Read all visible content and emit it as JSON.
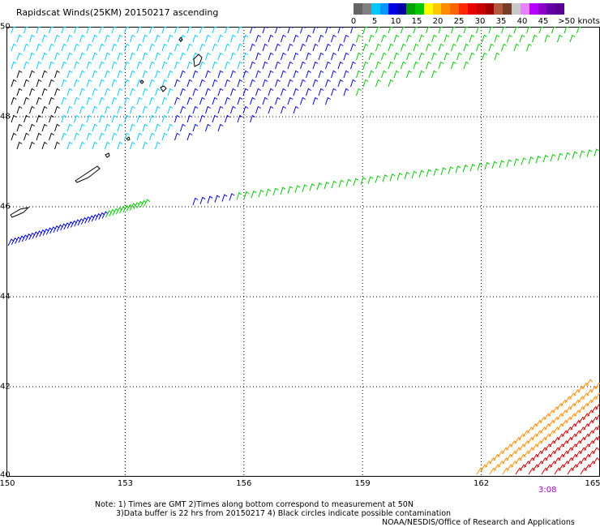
{
  "title": "Rapidscat Winds(25KM) 20150217 ascending",
  "legend": {
    "colors": [
      "#646464",
      "#808080",
      "#00c8ff",
      "#0096ff",
      "#0000e6",
      "#0000aa",
      "#00a000",
      "#00c800",
      "#ffff00",
      "#ffc800",
      "#ff8c00",
      "#ff6400",
      "#ff2800",
      "#e60000",
      "#c80000",
      "#a00000",
      "#b45a3c",
      "#783c28",
      "#c8c8c8",
      "#e682ff",
      "#b400ff",
      "#8c00c8",
      "#6400a0",
      "#5a0090"
    ],
    "labels": [
      "0",
      "5",
      "10",
      "15",
      "20",
      "25",
      "30",
      "35",
      "40",
      "45",
      ">50 knots"
    ]
  },
  "axes": {
    "longitude_labels": [
      "150",
      "153",
      "156",
      "159",
      "162",
      "165"
    ],
    "latitude_labels": [
      "50",
      "48",
      "46",
      "44",
      "42",
      "40"
    ]
  },
  "time_label": "3:08",
  "notes": {
    "line1": "Note: 1) Times are GMT 2)Times along bottom correspond to measurement at 50N",
    "line2": "3)Data buffer is 22 hrs from 20150217 4) Black circles indicate possible contamination",
    "line3": "NOAA/NESDIS/Office of Research and Applications"
  },
  "wind_colors": {
    "calm": "#000000",
    "light": "#00c8ff",
    "moderate": "#0000d2",
    "fresh": "#00c800",
    "strong": "#ffd200",
    "gale": "#ff8c00",
    "storm": "#d20000",
    "coast": "#000000"
  },
  "map_extent": {
    "lon": [
      150,
      165
    ],
    "lat": [
      40,
      50
    ]
  }
}
